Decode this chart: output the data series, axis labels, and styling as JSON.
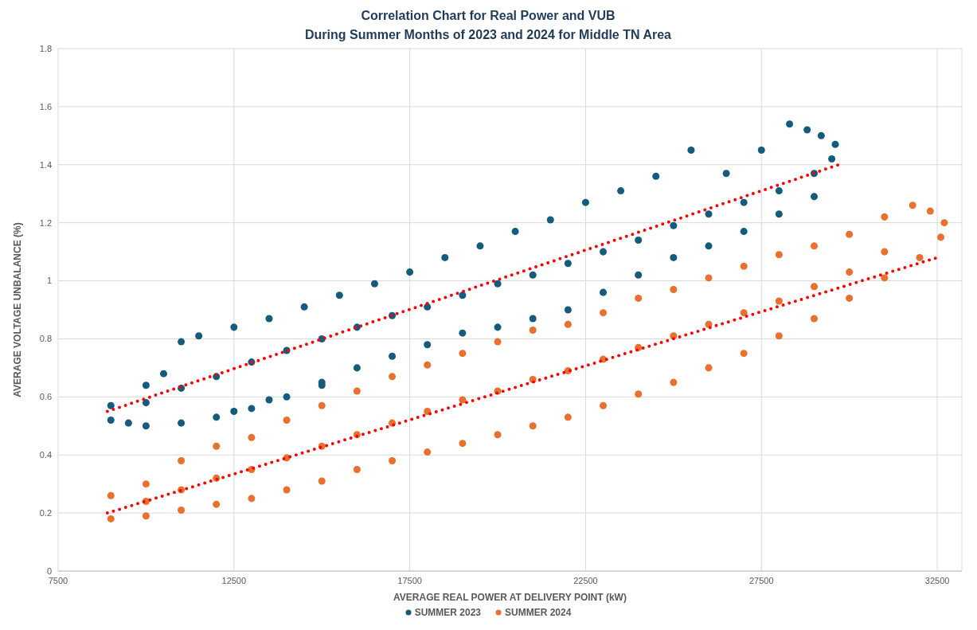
{
  "chart_data": {
    "type": "scatter",
    "title": "Correlation Chart for Real Power and VUB",
    "subtitle": "During Summer Months of 2023 and 2024 for Middle TN Area",
    "xlabel": "AVERAGE REAL POWER AT DELIVERY POINT (kW)",
    "ylabel": "AVERAGE VOLTAGE UNBALANCE (%)",
    "xlim": [
      7500,
      33200
    ],
    "xticks": [
      7500,
      12500,
      17500,
      22500,
      27500,
      32500
    ],
    "ylim": [
      0,
      1.8
    ],
    "yticks": [
      0,
      0.2,
      0.4,
      0.6,
      0.8,
      1,
      1.2,
      1.4,
      1.6,
      1.8
    ],
    "grid": true,
    "legend": "bottom",
    "marker": "circle",
    "series": [
      {
        "name": "SUMMER 2023",
        "color": "#155b7c",
        "x": [
          9000,
          9500,
          10000,
          11000,
          12000,
          13000,
          14000,
          15000,
          16000,
          17000,
          18000,
          19000,
          20000,
          21000,
          22000,
          23000,
          24000,
          25000,
          26000,
          27000,
          28000,
          29000,
          9000,
          10000,
          10500,
          11000,
          11500,
          12500,
          13500,
          14500,
          15500,
          16500,
          17500,
          18500,
          19500,
          20500,
          21500,
          22500,
          23500,
          24500,
          25500,
          26500,
          27500,
          28300,
          28800,
          29200,
          29600,
          10000,
          11000,
          12000,
          13000,
          14000,
          15000,
          16000,
          17000,
          18000,
          19000,
          20000,
          21000,
          22000,
          23000,
          24000,
          25000,
          26000,
          27000,
          28000,
          29000,
          29500,
          12500,
          13500,
          15000
        ],
        "values": [
          0.52,
          0.51,
          0.5,
          0.51,
          0.53,
          0.56,
          0.6,
          0.65,
          0.7,
          0.74,
          0.78,
          0.82,
          0.84,
          0.87,
          0.9,
          0.96,
          1.02,
          1.08,
          1.12,
          1.17,
          1.23,
          1.29,
          0.57,
          0.64,
          0.68,
          0.79,
          0.81,
          0.84,
          0.87,
          0.91,
          0.95,
          0.99,
          1.03,
          1.08,
          1.12,
          1.17,
          1.21,
          1.27,
          1.31,
          1.36,
          1.45,
          1.37,
          1.45,
          1.54,
          1.52,
          1.5,
          1.47,
          0.58,
          0.63,
          0.67,
          0.72,
          0.76,
          0.8,
          0.84,
          0.88,
          0.91,
          0.95,
          0.99,
          1.02,
          1.06,
          1.1,
          1.14,
          1.19,
          1.23,
          1.27,
          1.31,
          1.37,
          1.42,
          0.55,
          0.59,
          0.64
        ]
      },
      {
        "name": "SUMMER 2024",
        "color": "#e87130",
        "x": [
          9000,
          10000,
          11000,
          12000,
          13000,
          14000,
          15000,
          16000,
          17000,
          18000,
          19000,
          20000,
          21000,
          22000,
          23000,
          24000,
          25000,
          26000,
          27000,
          28000,
          29000,
          30000,
          31000,
          32000,
          32600,
          9000,
          10000,
          11000,
          12000,
          13000,
          14000,
          15000,
          16000,
          17000,
          18000,
          19000,
          20000,
          21000,
          22000,
          23000,
          24000,
          25000,
          26000,
          27000,
          28000,
          29000,
          30000,
          31000,
          31800,
          32300,
          32700,
          10000,
          11000,
          12000,
          13000,
          14000,
          15000,
          16000,
          17000,
          18000,
          19000,
          20000,
          21000,
          22000,
          23000,
          24000,
          25000,
          26000,
          27000,
          28000,
          29000,
          30000,
          31000
        ],
        "values": [
          0.18,
          0.19,
          0.21,
          0.23,
          0.25,
          0.28,
          0.31,
          0.35,
          0.38,
          0.41,
          0.44,
          0.47,
          0.5,
          0.53,
          0.57,
          0.61,
          0.65,
          0.7,
          0.75,
          0.81,
          0.87,
          0.94,
          1.01,
          1.08,
          1.15,
          0.26,
          0.3,
          0.38,
          0.43,
          0.46,
          0.52,
          0.57,
          0.62,
          0.67,
          0.71,
          0.75,
          0.79,
          0.83,
          0.85,
          0.89,
          0.94,
          0.97,
          1.01,
          1.05,
          1.09,
          1.12,
          1.16,
          1.22,
          1.26,
          1.24,
          1.2,
          0.24,
          0.28,
          0.32,
          0.35,
          0.39,
          0.43,
          0.47,
          0.51,
          0.55,
          0.59,
          0.62,
          0.66,
          0.69,
          0.73,
          0.77,
          0.81,
          0.85,
          0.89,
          0.93,
          0.98,
          1.03,
          1.1
        ]
      },
      {
        "type": "line",
        "color": "#ff0000",
        "line_style": "dotted",
        "marker": "none",
        "x": [
          8900,
          29700
        ],
        "values": [
          0.55,
          1.4
        ]
      },
      {
        "type": "line",
        "color": "#ff0000",
        "line_style": "dotted",
        "marker": "none",
        "x": [
          8900,
          32500
        ],
        "values": [
          0.2,
          1.08
        ]
      }
    ]
  }
}
